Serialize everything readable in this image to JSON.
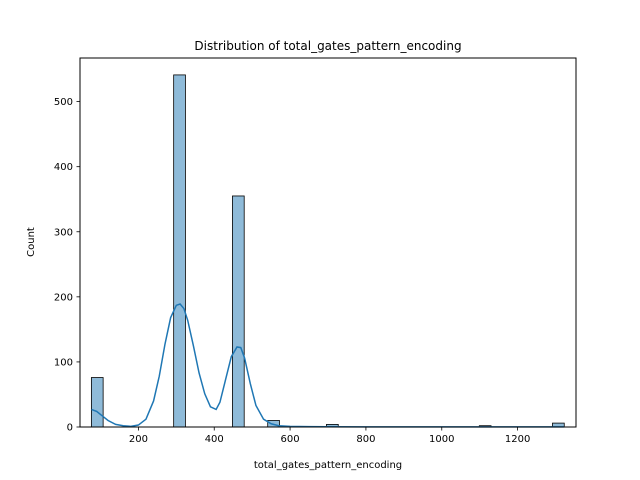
{
  "chart_data": {
    "type": "bar",
    "title": "Distribution of total_gates_pattern_encoding",
    "xlabel": "total_gates_pattern_encoding",
    "ylabel": "Count",
    "xlim": [
      46,
      1354
    ],
    "ylim": [
      0,
      567
    ],
    "xticks": [
      200,
      400,
      600,
      800,
      1000,
      1200
    ],
    "yticks": [
      0,
      100,
      200,
      300,
      400,
      500
    ],
    "grid": false,
    "bar_color": "#1f77b4",
    "bar_alpha": 0.5,
    "bins": [
      {
        "x0": 76,
        "x1": 107,
        "count": 76
      },
      {
        "x0": 293,
        "x1": 324,
        "count": 541
      },
      {
        "x0": 448,
        "x1": 479,
        "count": 355
      },
      {
        "x0": 541,
        "x1": 572,
        "count": 10
      },
      {
        "x0": 696,
        "x1": 727,
        "count": 4
      },
      {
        "x0": 1099,
        "x1": 1130,
        "count": 2
      },
      {
        "x0": 1292,
        "x1": 1323,
        "count": 6
      }
    ],
    "kde": {
      "color": "#1f77b4",
      "x": [
        76,
        90,
        105,
        120,
        140,
        160,
        180,
        200,
        220,
        240,
        255,
        270,
        285,
        300,
        310,
        320,
        330,
        345,
        360,
        375,
        390,
        405,
        415,
        430,
        445,
        460,
        470,
        480,
        495,
        510,
        530,
        550,
        570,
        600,
        650,
        700,
        800,
        900,
        1000,
        1100,
        1200,
        1323
      ],
      "y": [
        27,
        24,
        17,
        10,
        4,
        2,
        1,
        3,
        12,
        40,
        78,
        127,
        168,
        187,
        189,
        182,
        164,
        125,
        83,
        51,
        31,
        27,
        38,
        73,
        108,
        123,
        122,
        106,
        67,
        33,
        12,
        5,
        2,
        1,
        0.5,
        0.4,
        0.2,
        0.1,
        0.1,
        0.1,
        0.1,
        0.1
      ]
    }
  }
}
